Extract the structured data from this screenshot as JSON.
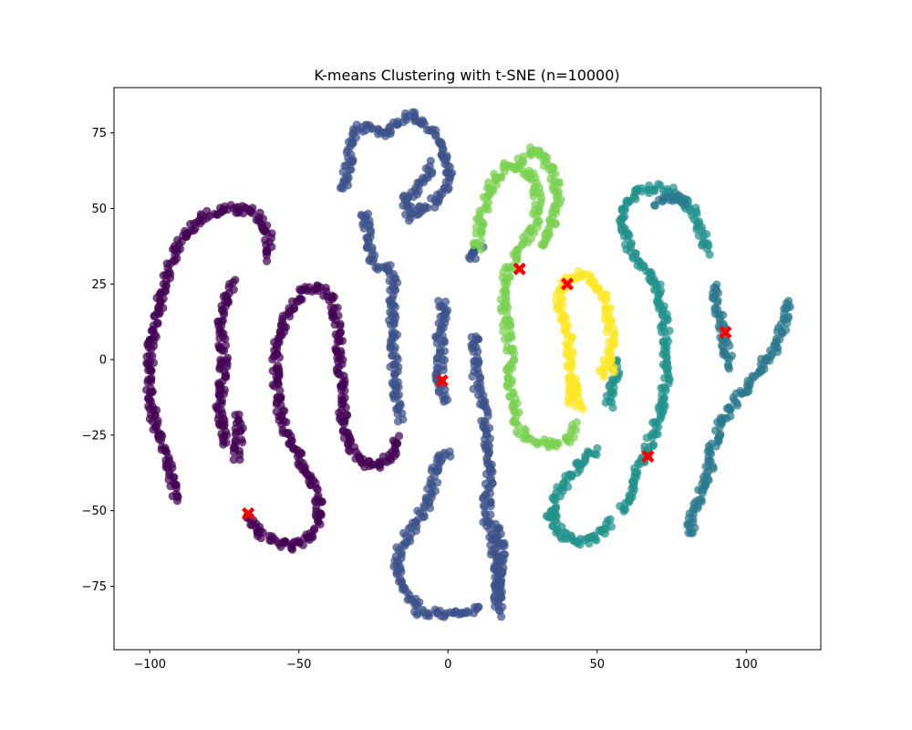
{
  "chart_data": {
    "type": "scatter",
    "title": "K-means Clustering with t-SNE (n=10000)",
    "xlabel": "",
    "ylabel": "",
    "xlim": [
      -112,
      125
    ],
    "ylim": [
      -96,
      90
    ],
    "x_ticks": [
      "−100",
      "−50",
      "0",
      "50",
      "100"
    ],
    "x_tick_values": [
      -100,
      -50,
      0,
      50,
      100
    ],
    "y_ticks": [
      "75",
      "50",
      "25",
      "0",
      "−25",
      "−50",
      "−75"
    ],
    "y_tick_values": [
      75,
      50,
      25,
      0,
      -25,
      -50,
      -75
    ],
    "grid": false,
    "legend": "none",
    "clusters": [
      {
        "color": "#440154",
        "paths": [
          [
            [
              -91,
              -46
            ],
            [
              -93,
              -38
            ],
            [
              -96,
              -28
            ],
            [
              -99,
              -18
            ],
            [
              -100,
              -8
            ],
            [
              -100,
              2
            ],
            [
              -98,
              12
            ],
            [
              -96,
              22
            ],
            [
              -93,
              32
            ],
            [
              -89,
              40
            ],
            [
              -84,
              46
            ],
            [
              -78,
              49
            ],
            [
              -72,
              50
            ],
            [
              -66,
              49
            ],
            [
              -62,
              46
            ],
            [
              -60,
              40
            ],
            [
              -61,
              33
            ]
          ],
          [
            [
              -67,
              -51
            ],
            [
              -65,
              -56
            ],
            [
              -59,
              -60
            ],
            [
              -53,
              -62
            ],
            [
              -47,
              -60
            ],
            [
              -44,
              -55
            ],
            [
              -43,
              -48
            ],
            [
              -46,
              -40
            ],
            [
              -50,
              -33
            ],
            [
              -54,
              -25
            ],
            [
              -57,
              -15
            ],
            [
              -58,
              -5
            ],
            [
              -57,
              5
            ],
            [
              -54,
              14
            ],
            [
              -49,
              22
            ],
            [
              -43,
              24
            ],
            [
              -39,
              20
            ],
            [
              -37,
              10
            ],
            [
              -36,
              0
            ],
            [
              -36,
              -10
            ],
            [
              -35,
              -20
            ],
            [
              -33,
              -28
            ],
            [
              -29,
              -34
            ],
            [
              -23,
              -35
            ],
            [
              -19,
              -32
            ],
            [
              -16,
              -25
            ]
          ],
          [
            [
              -74,
              -28
            ],
            [
              -76,
              -22
            ],
            [
              -77,
              -16
            ],
            [
              -76,
              -8
            ],
            [
              -75,
              0
            ],
            [
              -76,
              8
            ],
            [
              -76,
              15
            ],
            [
              -74,
              22
            ],
            [
              -72,
              26
            ]
          ],
          [
            [
              -71,
              -33
            ],
            [
              -70,
              -26
            ],
            [
              -70,
              -18
            ]
          ]
        ]
      },
      {
        "color": "#3b528b",
        "paths": [
          [
            [
              -35,
              56
            ],
            [
              -34,
              62
            ],
            [
              -33,
              68
            ],
            [
              -32,
              73
            ],
            [
              -30,
              77
            ],
            [
              -26,
              76
            ],
            [
              -22,
              74
            ],
            [
              -18,
              78
            ],
            [
              -13,
              81
            ],
            [
              -9,
              79
            ],
            [
              -5,
              75
            ],
            [
              -2,
              70
            ],
            [
              0,
              64
            ],
            [
              0,
              58
            ],
            [
              -3,
              53
            ],
            [
              -8,
              50
            ],
            [
              -12,
              47
            ],
            [
              -15,
              52
            ],
            [
              -12,
              55
            ],
            [
              -8,
              60
            ],
            [
              -5,
              65
            ]
          ],
          [
            [
              -28,
              49
            ],
            [
              -27,
              43
            ],
            [
              -26,
              36
            ],
            [
              -24,
              31
            ],
            [
              -20,
              30
            ],
            [
              -18,
              25
            ],
            [
              -19,
              18
            ],
            [
              -18,
              10
            ],
            [
              -18,
              2
            ],
            [
              -18,
              -6
            ],
            [
              -17,
              -14
            ],
            [
              -16,
              -20
            ]
          ],
          [
            [
              -2,
              20
            ],
            [
              -1,
              14
            ],
            [
              -3,
              8
            ],
            [
              -2,
              2
            ],
            [
              -3,
              -4
            ],
            [
              -2,
              -10
            ],
            [
              -1,
              -14
            ]
          ],
          [
            [
              10,
              -82
            ],
            [
              5,
              -84
            ],
            [
              0,
              -85
            ],
            [
              -5,
              -84
            ],
            [
              -9,
              -84
            ],
            [
              -12,
              -80
            ],
            [
              -15,
              -74
            ],
            [
              -17,
              -68
            ],
            [
              -16,
              -62
            ],
            [
              -11,
              -55
            ],
            [
              -7,
              -48
            ],
            [
              -5,
              -41
            ],
            [
              -4,
              -35
            ],
            [
              -2,
              -31
            ],
            [
              1,
              -31
            ]
          ],
          [
            [
              16,
              -80
            ],
            [
              17,
              -73
            ],
            [
              16,
              -67
            ],
            [
              15,
              -60
            ],
            [
              13,
              -53
            ],
            [
              13,
              -46
            ],
            [
              14,
              -39
            ],
            [
              14,
              -32
            ],
            [
              13,
              -25
            ],
            [
              12,
              -18
            ],
            [
              10,
              -10
            ],
            [
              9,
              -3
            ],
            [
              9,
              4
            ],
            [
              9,
              9
            ]
          ],
          [
            [
              17,
              -84
            ],
            [
              17,
              -77
            ],
            [
              17,
              -70
            ],
            [
              18,
              -62
            ],
            [
              17,
              -56
            ],
            [
              16,
              -54
            ]
          ],
          [
            [
              7,
              33
            ],
            [
              9,
              36
            ],
            [
              11,
              38
            ]
          ]
        ]
      },
      {
        "color": "#21918c",
        "paths": [
          [
            [
              58,
              -50
            ],
            [
              60,
              -47
            ],
            [
              62,
              -42
            ],
            [
              64,
              -36
            ],
            [
              67,
              -29
            ],
            [
              70,
              -21
            ],
            [
              72,
              -14
            ],
            [
              73,
              -7
            ],
            [
              73,
              0
            ],
            [
              73,
              8
            ],
            [
              72,
              15
            ],
            [
              71,
              22
            ],
            [
              68,
              28
            ],
            [
              64,
              33
            ],
            [
              61,
              37
            ],
            [
              59,
              42
            ],
            [
              58,
              48
            ],
            [
              60,
              53
            ],
            [
              65,
              56
            ],
            [
              70,
              57
            ],
            [
              75,
              56
            ],
            [
              79,
              53
            ],
            [
              82,
              49
            ],
            [
              84,
              44
            ],
            [
              86,
              39
            ],
            [
              88,
              35
            ]
          ],
          [
            [
              35,
              -50
            ],
            [
              36,
              -55
            ],
            [
              39,
              -58
            ],
            [
              44,
              -60
            ],
            [
              48,
              -60
            ],
            [
              52,
              -57
            ],
            [
              55,
              -53
            ]
          ],
          [
            [
              34,
              -52
            ],
            [
              36,
              -46
            ],
            [
              39,
              -41
            ],
            [
              42,
              -37
            ],
            [
              46,
              -33
            ],
            [
              50,
              -29
            ]
          ],
          [
            [
              54,
              -15
            ],
            [
              55,
              -10
            ],
            [
              56,
              -6
            ],
            [
              56,
              0
            ]
          ]
        ]
      },
      {
        "color": "#2a788e",
        "paths": [
          [
            [
              81,
              -58
            ],
            [
              82,
              -52
            ],
            [
              84,
              -46
            ],
            [
              86,
              -40
            ],
            [
              88,
              -34
            ],
            [
              89,
              -28
            ],
            [
              91,
              -22
            ],
            [
              94,
              -17
            ],
            [
              98,
              -12
            ],
            [
              101,
              -8
            ],
            [
              104,
              -4
            ],
            [
              107,
              0
            ],
            [
              110,
              5
            ],
            [
              112,
              10
            ],
            [
              113,
              15
            ],
            [
              114,
              20
            ]
          ],
          [
            [
              89,
              25
            ],
            [
              90,
              20
            ],
            [
              91,
              15
            ],
            [
              92,
              10
            ],
            [
              93,
              5
            ],
            [
              94,
              0
            ],
            [
              95,
              -3
            ]
          ],
          [
            [
              70,
              52
            ],
            [
              75,
              54
            ],
            [
              80,
              52
            ]
          ]
        ]
      },
      {
        "color": "#7ad151",
        "paths": [
          [
            [
              43,
              -22
            ],
            [
              40,
              -27
            ],
            [
              35,
              -28
            ],
            [
              29,
              -27
            ],
            [
              24,
              -23
            ],
            [
              22,
              -16
            ],
            [
              21,
              -8
            ],
            [
              21,
              0
            ],
            [
              20,
              8
            ],
            [
              19,
              16
            ],
            [
              19,
              24
            ],
            [
              20,
              30
            ],
            [
              24,
              36
            ],
            [
              28,
              42
            ],
            [
              30,
              48
            ],
            [
              30,
              55
            ],
            [
              28,
              60
            ],
            [
              25,
              63
            ],
            [
              20,
              64
            ],
            [
              16,
              60
            ],
            [
              13,
              54
            ],
            [
              11,
              47
            ],
            [
              10,
              41
            ],
            [
              10,
              36
            ]
          ],
          [
            [
              28,
              68
            ],
            [
              32,
              68
            ],
            [
              35,
              62
            ],
            [
              37,
              55
            ],
            [
              36,
              48
            ],
            [
              34,
              42
            ],
            [
              31,
              37
            ]
          ],
          [
            [
              24,
              64
            ],
            [
              28,
              70
            ]
          ]
        ]
      },
      {
        "color": "#fde725",
        "paths": [
          [
            [
              41,
              -14
            ],
            [
              42,
              -8
            ],
            [
              41,
              -2
            ],
            [
              41,
              4
            ],
            [
              40,
              10
            ],
            [
              38,
              15
            ],
            [
              37,
              21
            ],
            [
              39,
              26
            ],
            [
              43,
              28
            ],
            [
              47,
              28
            ],
            [
              50,
              24
            ],
            [
              53,
              18
            ],
            [
              54,
              12
            ],
            [
              55,
              6
            ],
            [
              54,
              1
            ],
            [
              53,
              -3
            ],
            [
              51,
              -6
            ]
          ],
          [
            [
              44,
              -16
            ],
            [
              42,
              -12
            ],
            [
              43,
              -6
            ]
          ],
          [
            [
              56,
              -4
            ],
            [
              57,
              -3
            ]
          ]
        ]
      }
    ],
    "centroids": {
      "color": "#ff0000",
      "marker": "x",
      "points": [
        [
          -67,
          -51
        ],
        [
          -2,
          -7
        ],
        [
          24,
          30
        ],
        [
          40,
          25
        ],
        [
          67,
          -32
        ],
        [
          93,
          9
        ]
      ]
    }
  }
}
